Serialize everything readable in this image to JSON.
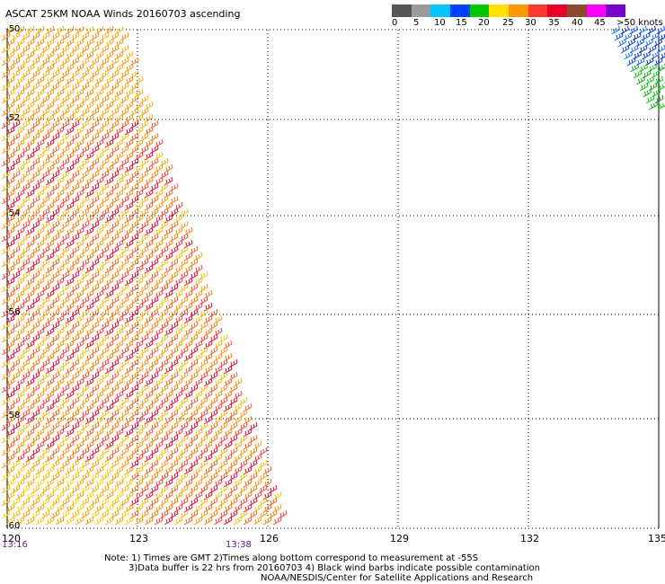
{
  "title": "ASCAT 25KM NOAA Winds 20160703 ascending",
  "color_scale": {
    "labels": [
      "0",
      "5",
      "10",
      "15",
      "20",
      "25",
      "30",
      "35",
      "40",
      "45",
      ">50 knots"
    ],
    "colors": [
      "#555555",
      "#9a9a9a",
      "#00c8ff",
      "#0040ff",
      "#00c800",
      "#ffe000",
      "#ff9900",
      "#ff3b30",
      "#e8002b",
      "#8b4a2b",
      "#ff00ff",
      "#7a00cc"
    ]
  },
  "latitude_labels": [
    "-50",
    "-52",
    "-54",
    "-56",
    "-58",
    "-60"
  ],
  "longitude_labels": [
    "120",
    "123",
    "126",
    "129",
    "132",
    "135"
  ],
  "time_labels": [
    "13:16",
    "13:38"
  ],
  "notes": {
    "line1": "Note: 1) Times are GMT 2)Times along bottom correspond to measurement at -55S",
    "line2": "3)Data buffer is 22 hrs from 20160703 4) Black wind barbs indicate possible contamination",
    "line3": "NOAA/NESDIS/Center for Satellite Applications and Research"
  }
}
